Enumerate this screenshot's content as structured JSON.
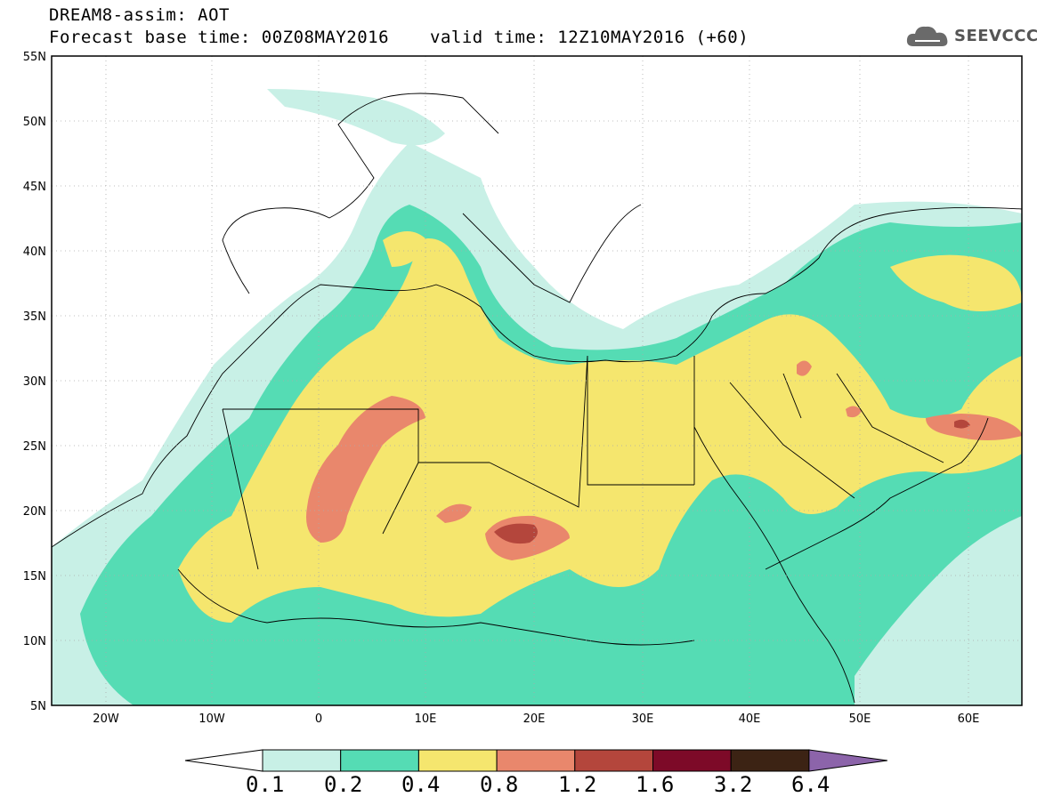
{
  "header": {
    "line1": "DREAM8-assim: AOT",
    "line2": "Forecast base time: 00Z08MAY2016",
    "line3": "valid time: 12Z10MAY2016 (+60)",
    "logo_text": "SEEVCCC"
  },
  "axes": {
    "lat_labels": [
      "55N",
      "50N",
      "45N",
      "40N",
      "35N",
      "30N",
      "25N",
      "20N",
      "15N",
      "10N",
      "5N"
    ],
    "lon_labels": [
      "20W",
      "10W",
      "0",
      "10E",
      "20E",
      "30E",
      "40E",
      "50E",
      "60E"
    ]
  },
  "colorbar": {
    "labels": [
      "0.1",
      "0.2",
      "0.4",
      "0.8",
      "1.2",
      "1.6",
      "3.2",
      "6.4"
    ],
    "colors": [
      "#ffffff",
      "#c8f0e6",
      "#55dcb4",
      "#f5e66e",
      "#e9876c",
      "#b4463c",
      "#7d0a28",
      "#3c2314",
      "#8c64aa"
    ]
  }
}
